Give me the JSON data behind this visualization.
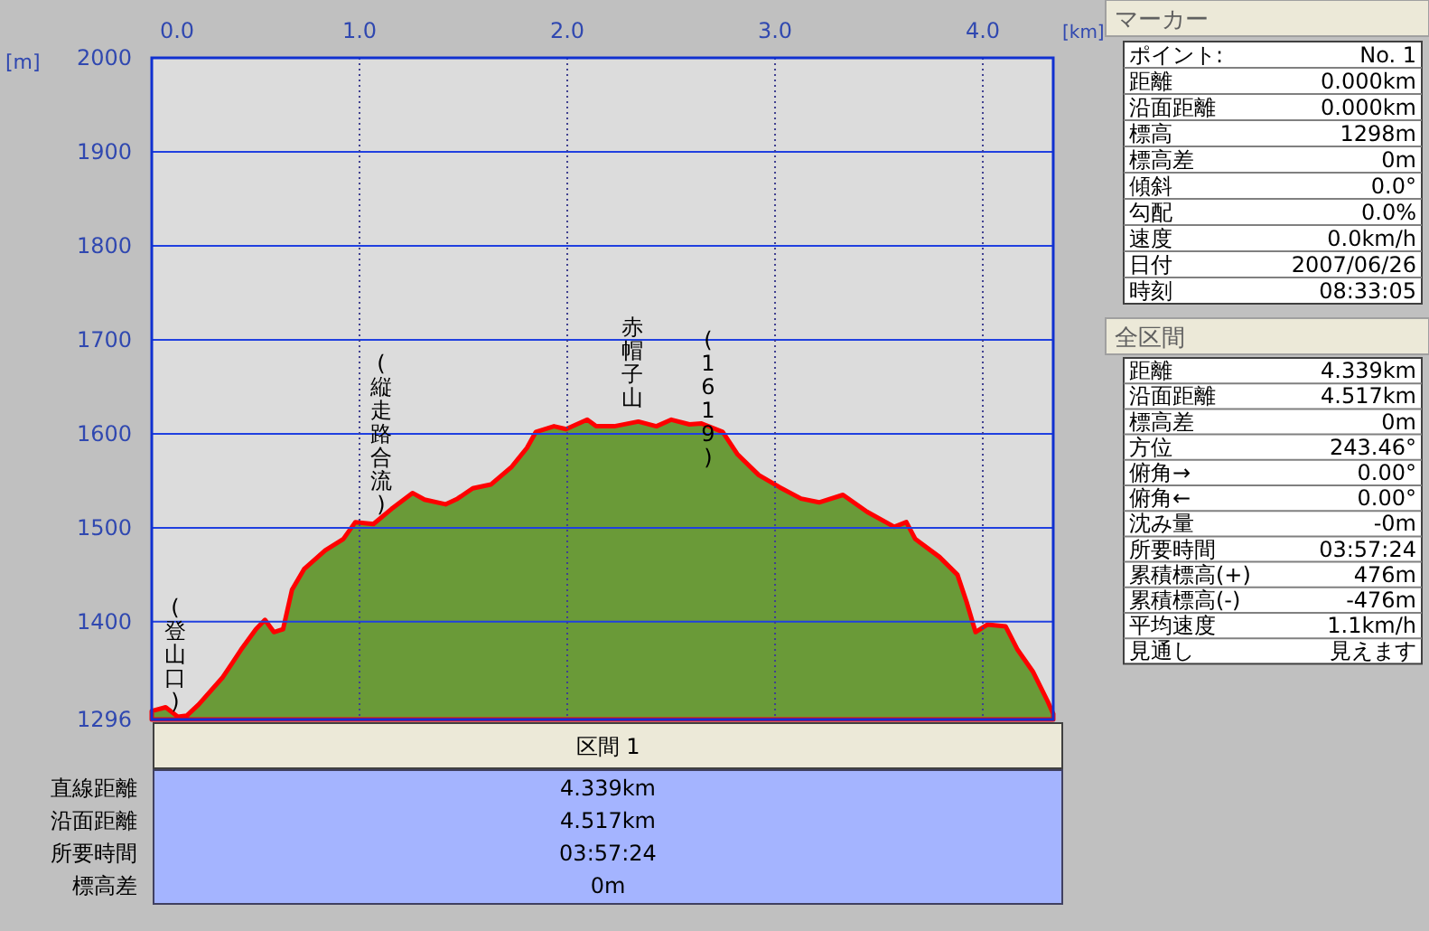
{
  "chart_data": [
    {
      "type": "area",
      "xlabel": "[km]",
      "ylabel": "[m]",
      "x": [
        0,
        0.067,
        0.125,
        0.168,
        0.226,
        0.342,
        0.429,
        0.501,
        0.545,
        0.588,
        0.632,
        0.675,
        0.733,
        0.835,
        0.922,
        0.98,
        1.067,
        1.154,
        1.255,
        1.313,
        1.414,
        1.472,
        1.545,
        1.632,
        1.733,
        1.806,
        1.849,
        1.936,
        1.994,
        2.096,
        2.139,
        2.226,
        2.342,
        2.429,
        2.501,
        2.588,
        2.646,
        2.748,
        2.82,
        2.922,
        3.023,
        3.125,
        3.212,
        3.327,
        3.443,
        3.574,
        3.632,
        3.675,
        3.791,
        3.878,
        3.922,
        3.965,
        4.023,
        4.11,
        4.168,
        4.241,
        4.313,
        4.339
      ],
      "series": [
        {
          "color": "#6a9a38",
          "values": [
            1305,
            1309,
            1299,
            1300,
            1312,
            1341,
            1370,
            1392,
            1402,
            1389,
            1392,
            1434,
            1456,
            1476,
            1488,
            1506,
            1504,
            1520,
            1537,
            1530,
            1525,
            1531,
            1542,
            1546,
            1565,
            1585,
            1602,
            1608,
            1605,
            1615,
            1608,
            1608,
            1613,
            1608,
            1615,
            1610,
            1611,
            1602,
            1578,
            1556,
            1543,
            1531,
            1527,
            1535,
            1517,
            1501,
            1506,
            1488,
            1469,
            1450,
            1421,
            1389,
            1397,
            1395,
            1370,
            1347,
            1315,
            1302
          ]
        }
      ],
      "xlim": [
        0,
        4.339
      ],
      "xticks": [
        {
          "value": 0,
          "label": "0.0"
        },
        {
          "value": 1,
          "label": "1.0"
        },
        {
          "value": 2,
          "label": "2.0"
        },
        {
          "value": 3,
          "label": "3.0"
        },
        {
          "value": 4,
          "label": "4.0"
        }
      ],
      "ylim": [
        1296,
        2000
      ],
      "yticks": [
        1296,
        1400,
        1500,
        1600,
        1700,
        1800,
        1900,
        2000
      ],
      "grid": true,
      "annotations": [
        "(登山口)",
        "(縦走路合流)",
        "赤帽子山",
        "(1619)"
      ]
    },
    {
      "type": "other",
      "title": "マーカー",
      "annotations": [
        "ポイント:",
        "No. 1",
        "距離",
        "0.000km",
        "沿面距離",
        "0.000km",
        "標高",
        "1298m",
        "標高差",
        "0m",
        "傾斜",
        "0.0°",
        "勾配",
        "0.0%",
        "速度",
        "0.0km/h",
        "日付",
        "2007/06/26",
        "時刻",
        "08:33:05"
      ]
    },
    {
      "type": "other",
      "title": "全区間",
      "annotations": [
        "距離",
        "4.339km",
        "沿面距離",
        "4.517km",
        "標高差",
        "0m",
        "方位",
        "243.46°",
        "俯角→",
        "0.00°",
        "俯角←",
        "0.00°",
        "沈み量",
        "-0m",
        "所要時間",
        "03:57:24",
        "累積標高(+)",
        "476m",
        "累積標高(-)",
        "-476m",
        "平均速度",
        "1.1km/h",
        "見通し",
        "見えます"
      ]
    },
    {
      "type": "other",
      "title": "区間 1",
      "annotations": [
        "直線距離",
        "4.339km",
        "沿面距離",
        "4.517km",
        "所要時間",
        "03:57:24",
        "標高差",
        "0m"
      ]
    }
  ]
}
